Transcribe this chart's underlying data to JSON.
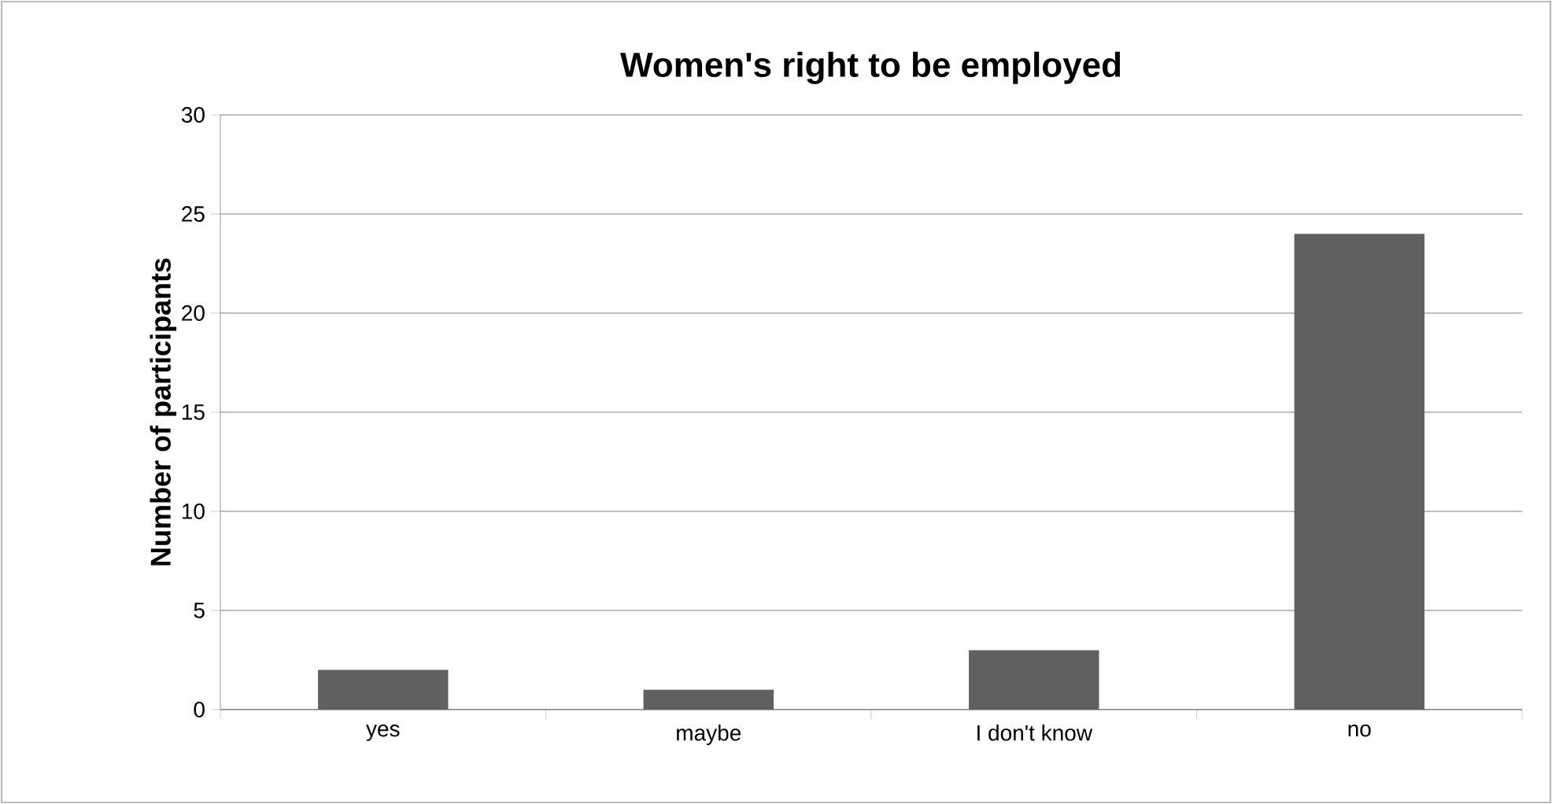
{
  "chart_data": {
    "type": "bar",
    "title": "Women's right to be employed",
    "ylabel": "Number of participants",
    "categories": [
      "yes",
      "maybe",
      "I don't know",
      "no"
    ],
    "values": [
      2,
      1,
      3,
      24
    ],
    "color": "#606060",
    "ylim": [
      0,
      30
    ],
    "yticks": [
      0,
      5,
      10,
      15,
      20,
      25,
      30
    ],
    "grid": "y"
  }
}
